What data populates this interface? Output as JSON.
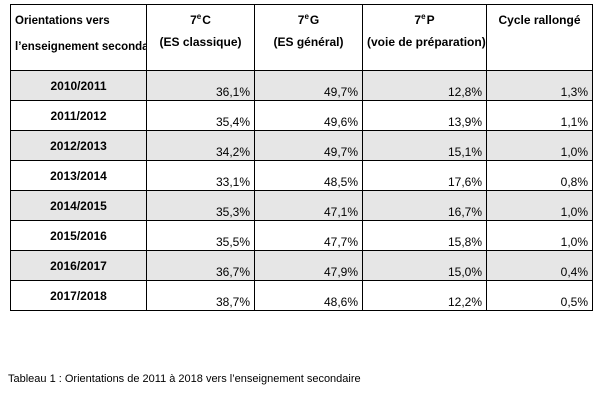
{
  "table": {
    "headers": [
      {
        "line1": "Orientations vers",
        "line2": "l’enseignement secondaire"
      },
      {
        "num": "7",
        "sup": "e",
        "letter": "C",
        "line2": "(ES classique)"
      },
      {
        "num": "7",
        "sup": "e",
        "letter": "G",
        "line2": "(ES général)"
      },
      {
        "num": "7",
        "sup": "e",
        "letter": "P",
        "line2": "(voie de préparation)"
      },
      {
        "line1": "Cycle rallongé",
        "line2": ""
      }
    ],
    "rows": [
      {
        "year": "2010/2011",
        "c": "36,1%",
        "g": "49,7%",
        "p": "12,8%",
        "cycle": "1,3%"
      },
      {
        "year": "2011/2012",
        "c": "35,4%",
        "g": "49,6%",
        "p": "13,9%",
        "cycle": "1,1%"
      },
      {
        "year": "2012/2013",
        "c": "34,2%",
        "g": "49,7%",
        "p": "15,1%",
        "cycle": "1,0%"
      },
      {
        "year": "2013/2014",
        "c": "33,1%",
        "g": "48,5%",
        "p": "17,6%",
        "cycle": "0,8%"
      },
      {
        "year": "2014/2015",
        "c": "35,3%",
        "g": "47,1%",
        "p": "16,7%",
        "cycle": "1,0%"
      },
      {
        "year": "2015/2016",
        "c": "35,5%",
        "g": "47,7%",
        "p": "15,8%",
        "cycle": "1,0%"
      },
      {
        "year": "2016/2017",
        "c": "36,7%",
        "g": "47,9%",
        "p": "15,0%",
        "cycle": "0,4%"
      },
      {
        "year": "2017/2018",
        "c": "38,7%",
        "g": "48,6%",
        "p": "12,2%",
        "cycle": "0,5%"
      }
    ],
    "row_shade_color": "#e6e6e6",
    "border_color": "#000000"
  },
  "caption": "Tableau 1 : Orientations de 2011 à 2018 vers l’enseignement secondaire"
}
